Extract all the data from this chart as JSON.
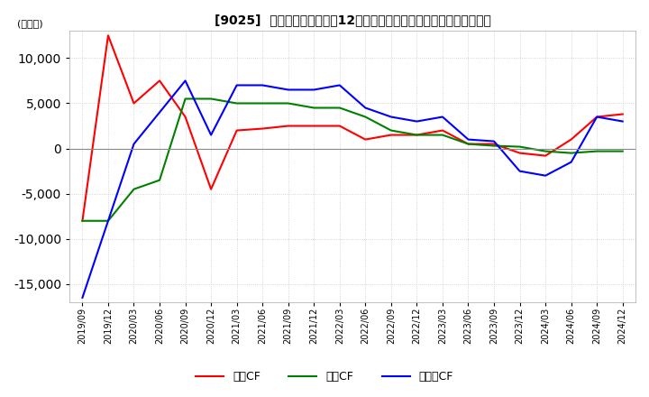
{
  "title": "[9025]  キャッシュフローの12か月移動合計の対前年同期増減額の推移",
  "ylabel": "(百万円)",
  "ylim": [
    -17000,
    13000
  ],
  "yticks": [
    -15000,
    -10000,
    -5000,
    0,
    5000,
    10000
  ],
  "background_color": "#ffffff",
  "grid_color": "#c8c8c8",
  "x_labels": [
    "2019/09",
    "2019/12",
    "2020/03",
    "2020/06",
    "2020/09",
    "2020/12",
    "2021/03",
    "2021/06",
    "2021/09",
    "2021/12",
    "2022/03",
    "2022/06",
    "2022/09",
    "2022/12",
    "2023/03",
    "2023/06",
    "2023/09",
    "2023/12",
    "2024/03",
    "2024/06",
    "2024/09",
    "2024/12"
  ],
  "operating_cf": [
    -8000,
    12500,
    5000,
    7500,
    3500,
    -4500,
    2000,
    2200,
    2500,
    2500,
    2500,
    1000,
    1500,
    1500,
    2000,
    500,
    500,
    -500,
    -800,
    1000,
    3500,
    3800
  ],
  "investing_cf": [
    -8000,
    -8000,
    -4500,
    -3500,
    5500,
    5500,
    5000,
    5000,
    5000,
    4500,
    4500,
    3500,
    2000,
    1500,
    1500,
    500,
    300,
    200,
    -300,
    -500,
    -300,
    -300
  ],
  "free_cf": [
    -16500,
    -8000,
    500,
    4000,
    7500,
    1500,
    7000,
    7000,
    6500,
    6500,
    7000,
    4500,
    3500,
    3000,
    3500,
    1000,
    800,
    -2500,
    -3000,
    -1500,
    3500,
    3000
  ],
  "line_colors": {
    "operating": "#ff0000",
    "investing": "#008000",
    "free": "#0000ff"
  },
  "legend_labels": [
    "営業CF",
    "投資CF",
    "フリーCF"
  ]
}
